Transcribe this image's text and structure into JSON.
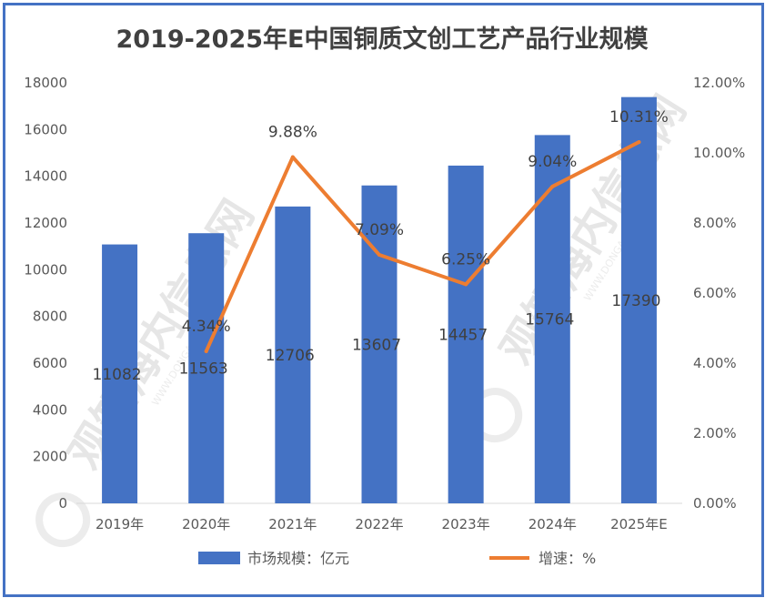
{
  "chart_data": {
    "type": "bar",
    "title": "2019-2025年E中国铜质文创工艺产品行业规模",
    "categories": [
      "2019年",
      "2020年",
      "2021年",
      "2022年",
      "2023年",
      "2024年",
      "2025年E"
    ],
    "series": [
      {
        "name": "市场规模：亿元",
        "type": "bar",
        "axis": "left",
        "color": "#4472c4",
        "values": [
          11082,
          11563,
          12706,
          13607,
          14457,
          15764,
          17390
        ],
        "labels": [
          "11082",
          "11563",
          "12706",
          "13607",
          "14457",
          "15764",
          "17390"
        ]
      },
      {
        "name": "增速：%",
        "type": "line",
        "axis": "right",
        "color": "#ed7d31",
        "values": [
          null,
          4.34,
          9.88,
          7.09,
          6.25,
          9.04,
          10.31
        ],
        "labels": [
          "",
          "4.34%",
          "9.88%",
          "7.09%",
          "6.25%",
          "9.04%",
          "10.31%"
        ]
      }
    ],
    "y_left": {
      "range": [
        0,
        18000
      ],
      "ticks": [
        "0",
        "2000",
        "4000",
        "6000",
        "8000",
        "10000",
        "12000",
        "14000",
        "16000",
        "18000"
      ]
    },
    "y_right": {
      "range": [
        0,
        12
      ],
      "ticks": [
        "0.00%",
        "2.00%",
        "4.00%",
        "6.00%",
        "8.00%",
        "10.00%",
        "12.00%"
      ]
    },
    "grid": false,
    "legend_position": "bottom"
  },
  "watermark": {
    "text": "观知海内信息网",
    "sub": "WWW.DONGAOGOB.COM"
  }
}
